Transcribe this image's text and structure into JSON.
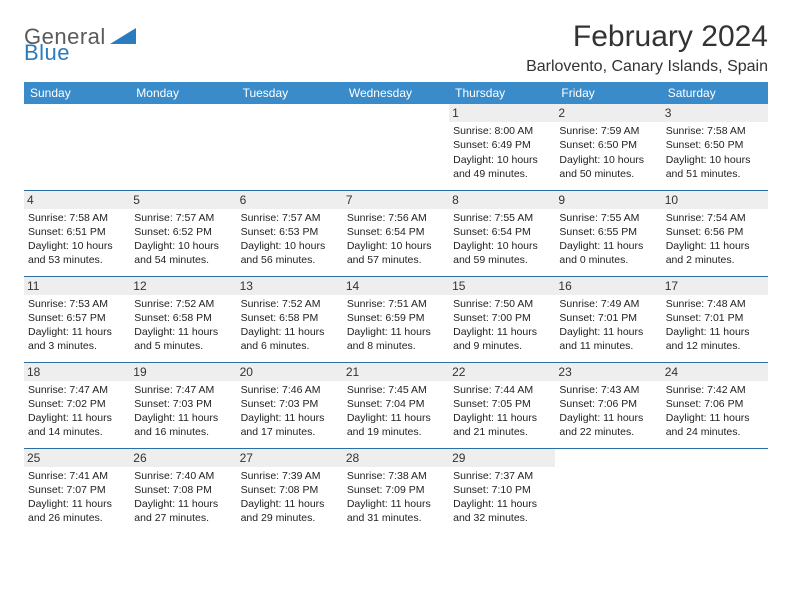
{
  "brand": {
    "top": "General",
    "bottom": "Blue"
  },
  "title": "February 2024",
  "location": "Barlovento, Canary Islands, Spain",
  "colors": {
    "header_bg": "#3a8bc9",
    "header_text": "#ffffff",
    "border": "#2b6fa5",
    "text": "#222222",
    "daynum_bg": "#eeeeee",
    "brand_gray": "#5a5a5a",
    "brand_blue": "#2b7bbf"
  },
  "day_headers": [
    "Sunday",
    "Monday",
    "Tuesday",
    "Wednesday",
    "Thursday",
    "Friday",
    "Saturday"
  ],
  "weeks": [
    [
      null,
      null,
      null,
      null,
      {
        "n": "1",
        "sr": "8:00 AM",
        "ss": "6:49 PM",
        "dl": "10 hours and 49 minutes."
      },
      {
        "n": "2",
        "sr": "7:59 AM",
        "ss": "6:50 PM",
        "dl": "10 hours and 50 minutes."
      },
      {
        "n": "3",
        "sr": "7:58 AM",
        "ss": "6:50 PM",
        "dl": "10 hours and 51 minutes."
      }
    ],
    [
      {
        "n": "4",
        "sr": "7:58 AM",
        "ss": "6:51 PM",
        "dl": "10 hours and 53 minutes."
      },
      {
        "n": "5",
        "sr": "7:57 AM",
        "ss": "6:52 PM",
        "dl": "10 hours and 54 minutes."
      },
      {
        "n": "6",
        "sr": "7:57 AM",
        "ss": "6:53 PM",
        "dl": "10 hours and 56 minutes."
      },
      {
        "n": "7",
        "sr": "7:56 AM",
        "ss": "6:54 PM",
        "dl": "10 hours and 57 minutes."
      },
      {
        "n": "8",
        "sr": "7:55 AM",
        "ss": "6:54 PM",
        "dl": "10 hours and 59 minutes."
      },
      {
        "n": "9",
        "sr": "7:55 AM",
        "ss": "6:55 PM",
        "dl": "11 hours and 0 minutes."
      },
      {
        "n": "10",
        "sr": "7:54 AM",
        "ss": "6:56 PM",
        "dl": "11 hours and 2 minutes."
      }
    ],
    [
      {
        "n": "11",
        "sr": "7:53 AM",
        "ss": "6:57 PM",
        "dl": "11 hours and 3 minutes."
      },
      {
        "n": "12",
        "sr": "7:52 AM",
        "ss": "6:58 PM",
        "dl": "11 hours and 5 minutes."
      },
      {
        "n": "13",
        "sr": "7:52 AM",
        "ss": "6:58 PM",
        "dl": "11 hours and 6 minutes."
      },
      {
        "n": "14",
        "sr": "7:51 AM",
        "ss": "6:59 PM",
        "dl": "11 hours and 8 minutes."
      },
      {
        "n": "15",
        "sr": "7:50 AM",
        "ss": "7:00 PM",
        "dl": "11 hours and 9 minutes."
      },
      {
        "n": "16",
        "sr": "7:49 AM",
        "ss": "7:01 PM",
        "dl": "11 hours and 11 minutes."
      },
      {
        "n": "17",
        "sr": "7:48 AM",
        "ss": "7:01 PM",
        "dl": "11 hours and 12 minutes."
      }
    ],
    [
      {
        "n": "18",
        "sr": "7:47 AM",
        "ss": "7:02 PM",
        "dl": "11 hours and 14 minutes."
      },
      {
        "n": "19",
        "sr": "7:47 AM",
        "ss": "7:03 PM",
        "dl": "11 hours and 16 minutes."
      },
      {
        "n": "20",
        "sr": "7:46 AM",
        "ss": "7:03 PM",
        "dl": "11 hours and 17 minutes."
      },
      {
        "n": "21",
        "sr": "7:45 AM",
        "ss": "7:04 PM",
        "dl": "11 hours and 19 minutes."
      },
      {
        "n": "22",
        "sr": "7:44 AM",
        "ss": "7:05 PM",
        "dl": "11 hours and 21 minutes."
      },
      {
        "n": "23",
        "sr": "7:43 AM",
        "ss": "7:06 PM",
        "dl": "11 hours and 22 minutes."
      },
      {
        "n": "24",
        "sr": "7:42 AM",
        "ss": "7:06 PM",
        "dl": "11 hours and 24 minutes."
      }
    ],
    [
      {
        "n": "25",
        "sr": "7:41 AM",
        "ss": "7:07 PM",
        "dl": "11 hours and 26 minutes."
      },
      {
        "n": "26",
        "sr": "7:40 AM",
        "ss": "7:08 PM",
        "dl": "11 hours and 27 minutes."
      },
      {
        "n": "27",
        "sr": "7:39 AM",
        "ss": "7:08 PM",
        "dl": "11 hours and 29 minutes."
      },
      {
        "n": "28",
        "sr": "7:38 AM",
        "ss": "7:09 PM",
        "dl": "11 hours and 31 minutes."
      },
      {
        "n": "29",
        "sr": "7:37 AM",
        "ss": "7:10 PM",
        "dl": "11 hours and 32 minutes."
      },
      null,
      null
    ]
  ],
  "labels": {
    "sunrise": "Sunrise:",
    "sunset": "Sunset:",
    "daylight": "Daylight:"
  }
}
